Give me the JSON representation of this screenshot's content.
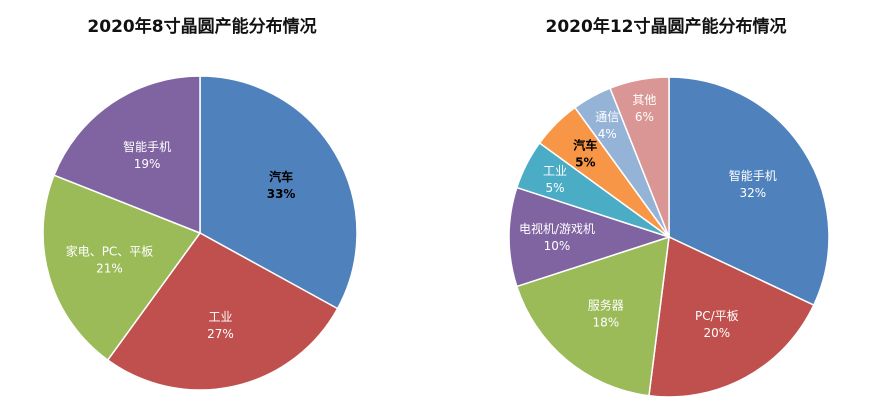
{
  "chart_data": [
    {
      "type": "pie",
      "title": "2020年8寸晶圆产能分布情况",
      "slices": [
        {
          "label": "汽车",
          "value": 33,
          "value_label": "33%",
          "color": "#4f81bd",
          "text_color": "#000000",
          "bold": true
        },
        {
          "label": "工业",
          "value": 27,
          "value_label": "27%",
          "color": "#c0504d",
          "text_color": "#ffffff",
          "bold": false
        },
        {
          "label": "家电、PC、平板",
          "value": 21,
          "value_label": "21%",
          "color": "#9bbb59",
          "text_color": "#ffffff",
          "bold": false
        },
        {
          "label": "智能手机",
          "value": 19,
          "value_label": "19%",
          "color": "#8064a2",
          "text_color": "#ffffff",
          "bold": false
        }
      ]
    },
    {
      "type": "pie",
      "title": "2020年12寸晶圆产能分布情况",
      "slices": [
        {
          "label": "智能手机",
          "value": 32,
          "value_label": "32%",
          "color": "#4f81bd",
          "text_color": "#ffffff",
          "bold": false
        },
        {
          "label": "PC/平板",
          "value": 20,
          "value_label": "20%",
          "color": "#c0504d",
          "text_color": "#ffffff",
          "bold": false
        },
        {
          "label": "服务器",
          "value": 18,
          "value_label": "18%",
          "color": "#9bbb59",
          "text_color": "#ffffff",
          "bold": false
        },
        {
          "label": "电视机/游戏机",
          "value": 10,
          "value_label": "10%",
          "color": "#8064a2",
          "text_color": "#ffffff",
          "bold": false
        },
        {
          "label": "工业",
          "value": 5,
          "value_label": "5%",
          "color": "#4bacc6",
          "text_color": "#ffffff",
          "bold": false
        },
        {
          "label": "汽车",
          "value": 5,
          "value_label": "5%",
          "color": "#f79646",
          "text_color": "#000000",
          "bold": true
        },
        {
          "label": "通信",
          "value": 4,
          "value_label": "4%",
          "color": "#95b3d7",
          "text_color": "#ffffff",
          "bold": false
        },
        {
          "label": "其他",
          "value": 6,
          "value_label": "6%",
          "color": "#d99694",
          "text_color": "#ffffff",
          "bold": false
        }
      ]
    }
  ]
}
